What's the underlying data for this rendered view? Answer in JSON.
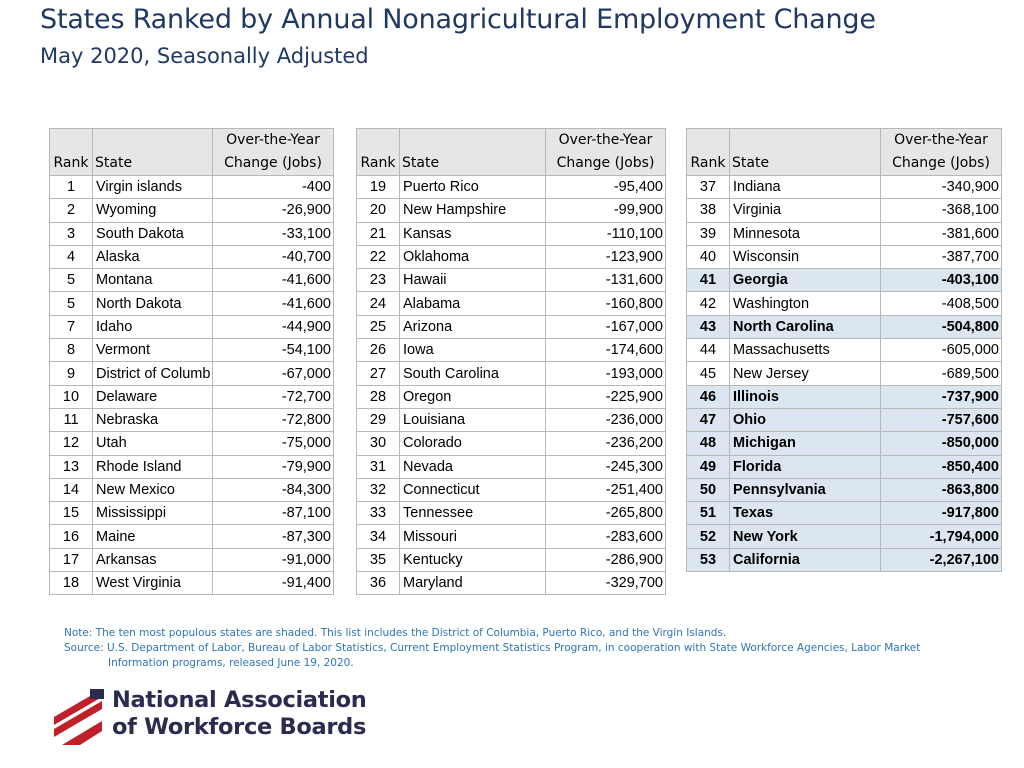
{
  "header": {
    "title": "States Ranked by Annual Nonagricultural Employment Change",
    "subtitle": "May 2020, Seasonally Adjusted"
  },
  "table_headers": {
    "rank": "Rank",
    "state": "State",
    "change_line1": "Over-the-Year",
    "change_line2": "Change (Jobs)"
  },
  "tables": [
    {
      "rows": [
        {
          "rank": "1",
          "state": "Virgin islands",
          "change": "-400",
          "shaded": false
        },
        {
          "rank": "2",
          "state": "Wyoming",
          "change": "-26,900",
          "shaded": false
        },
        {
          "rank": "3",
          "state": "South Dakota",
          "change": "-33,100",
          "shaded": false
        },
        {
          "rank": "4",
          "state": "Alaska",
          "change": "-40,700",
          "shaded": false
        },
        {
          "rank": "5",
          "state": "Montana",
          "change": "-41,600",
          "shaded": false
        },
        {
          "rank": "5",
          "state": "North Dakota",
          "change": "-41,600",
          "shaded": false
        },
        {
          "rank": "7",
          "state": "Idaho",
          "change": "-44,900",
          "shaded": false
        },
        {
          "rank": "8",
          "state": "Vermont",
          "change": "-54,100",
          "shaded": false
        },
        {
          "rank": "9",
          "state": "District of Columb",
          "change": "-67,000",
          "shaded": false
        },
        {
          "rank": "10",
          "state": "Delaware",
          "change": "-72,700",
          "shaded": false
        },
        {
          "rank": "11",
          "state": "Nebraska",
          "change": "-72,800",
          "shaded": false
        },
        {
          "rank": "12",
          "state": "Utah",
          "change": "-75,000",
          "shaded": false
        },
        {
          "rank": "13",
          "state": "Rhode Island",
          "change": "-79,900",
          "shaded": false
        },
        {
          "rank": "14",
          "state": "New Mexico",
          "change": "-84,300",
          "shaded": false
        },
        {
          "rank": "15",
          "state": "Mississippi",
          "change": "-87,100",
          "shaded": false
        },
        {
          "rank": "16",
          "state": "Maine",
          "change": "-87,300",
          "shaded": false
        },
        {
          "rank": "17",
          "state": "Arkansas",
          "change": "-91,000",
          "shaded": false
        },
        {
          "rank": "18",
          "state": "West Virginia",
          "change": "-91,400",
          "shaded": false
        }
      ]
    },
    {
      "rows": [
        {
          "rank": "19",
          "state": "Puerto Rico",
          "change": "-95,400",
          "shaded": false
        },
        {
          "rank": "20",
          "state": "New Hampshire",
          "change": "-99,900",
          "shaded": false
        },
        {
          "rank": "21",
          "state": "Kansas",
          "change": "-110,100",
          "shaded": false
        },
        {
          "rank": "22",
          "state": "Oklahoma",
          "change": "-123,900",
          "shaded": false
        },
        {
          "rank": "23",
          "state": "Hawaii",
          "change": "-131,600",
          "shaded": false
        },
        {
          "rank": "24",
          "state": "Alabama",
          "change": "-160,800",
          "shaded": false
        },
        {
          "rank": "25",
          "state": "Arizona",
          "change": "-167,000",
          "shaded": false
        },
        {
          "rank": "26",
          "state": "Iowa",
          "change": "-174,600",
          "shaded": false
        },
        {
          "rank": "27",
          "state": "South Carolina",
          "change": "-193,000",
          "shaded": false
        },
        {
          "rank": "28",
          "state": "Oregon",
          "change": "-225,900",
          "shaded": false
        },
        {
          "rank": "29",
          "state": "Louisiana",
          "change": "-236,000",
          "shaded": false
        },
        {
          "rank": "30",
          "state": "Colorado",
          "change": "-236,200",
          "shaded": false
        },
        {
          "rank": "31",
          "state": "Nevada",
          "change": "-245,300",
          "shaded": false
        },
        {
          "rank": "32",
          "state": "Connecticut",
          "change": "-251,400",
          "shaded": false
        },
        {
          "rank": "33",
          "state": "Tennessee",
          "change": "-265,800",
          "shaded": false
        },
        {
          "rank": "34",
          "state": "Missouri",
          "change": "-283,600",
          "shaded": false
        },
        {
          "rank": "35",
          "state": "Kentucky",
          "change": "-286,900",
          "shaded": false
        },
        {
          "rank": "36",
          "state": "Maryland",
          "change": "-329,700",
          "shaded": false
        }
      ]
    },
    {
      "rows": [
        {
          "rank": "37",
          "state": "Indiana",
          "change": "-340,900",
          "shaded": false
        },
        {
          "rank": "38",
          "state": "Virginia",
          "change": "-368,100",
          "shaded": false
        },
        {
          "rank": "39",
          "state": "Minnesota",
          "change": "-381,600",
          "shaded": false
        },
        {
          "rank": "40",
          "state": "Wisconsin",
          "change": "-387,700",
          "shaded": false
        },
        {
          "rank": "41",
          "state": "Georgia",
          "change": "-403,100",
          "shaded": true
        },
        {
          "rank": "42",
          "state": "Washington",
          "change": "-408,500",
          "shaded": false
        },
        {
          "rank": "43",
          "state": "North Carolina",
          "change": "-504,800",
          "shaded": true
        },
        {
          "rank": "44",
          "state": "Massachusetts",
          "change": "-605,000",
          "shaded": false
        },
        {
          "rank": "45",
          "state": "New Jersey",
          "change": "-689,500",
          "shaded": false
        },
        {
          "rank": "46",
          "state": "Illinois",
          "change": "-737,900",
          "shaded": true
        },
        {
          "rank": "47",
          "state": "Ohio",
          "change": "-757,600",
          "shaded": true
        },
        {
          "rank": "48",
          "state": "Michigan",
          "change": "-850,000",
          "shaded": true
        },
        {
          "rank": "49",
          "state": "Florida",
          "change": "-850,400",
          "shaded": true
        },
        {
          "rank": "50",
          "state": "Pennsylvania",
          "change": "-863,800",
          "shaded": true
        },
        {
          "rank": "51",
          "state": "Texas",
          "change": "-917,800",
          "shaded": true
        },
        {
          "rank": "52",
          "state": "New York",
          "change": "-1,794,000",
          "shaded": true
        },
        {
          "rank": "53",
          "state": "California",
          "change": "-2,267,100",
          "shaded": true
        }
      ]
    }
  ],
  "footer": {
    "note": "Note:  The ten most populous states are shaded.  This list includes the District of Columbia, Puerto Rico, and the Virgin Islands.",
    "source_line1": "Source:  U.S. Department of Labor, Bureau of Labor Statistics, Current Employment Statistics Program, in cooperation with State Workforce Agencies, Labor Market",
    "source_line2": "Information programs, released June 19, 2020."
  },
  "logo": {
    "line1": "National Association",
    "line2": "of Workforce Boards"
  },
  "colors": {
    "title": "#1f3864",
    "shade": "#dce6f1",
    "header_fill": "#e6e6e6",
    "note_text": "#2e75b6",
    "logo_red": "#c0202a",
    "logo_navy": "#2b2b4f"
  }
}
